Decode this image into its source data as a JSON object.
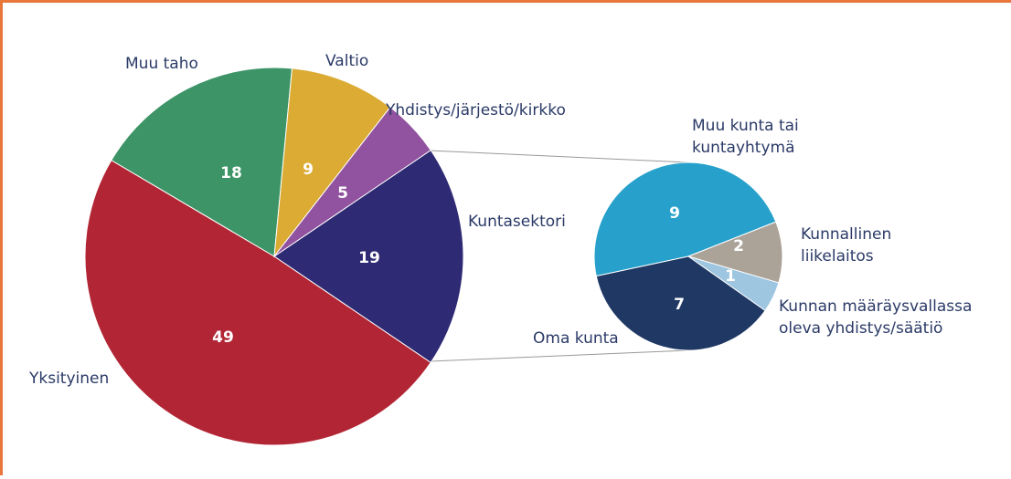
{
  "chart_data": [
    {
      "type": "pie",
      "categories": [
        [
          "Kuntasektori"
        ],
        [
          "Yksityinen"
        ],
        [
          "Muu taho"
        ],
        [
          "Valtio"
        ],
        [
          "Yhdistys/järjestö/kirkko"
        ]
      ],
      "values": [
        19,
        49,
        18,
        9,
        5
      ],
      "colors": [
        "#2e2a74",
        "#b22534",
        "#3d9467",
        "#dbab33",
        "#9152a0"
      ]
    },
    {
      "type": "pie",
      "categories": [
        [
          "Muu kunta tai",
          "kuntayhtymä"
        ],
        [
          "Kunnallinen",
          "liikelaitos"
        ],
        [
          "Kunnan määräysvallassa",
          "oleva yhdistys/säätiö"
        ],
        [
          "Oma kunta"
        ]
      ],
      "values": [
        9,
        2,
        1,
        7
      ],
      "colors": [
        "#27a1cb",
        "#aba398",
        "#9fc6e0",
        "#1f3864"
      ]
    }
  ]
}
